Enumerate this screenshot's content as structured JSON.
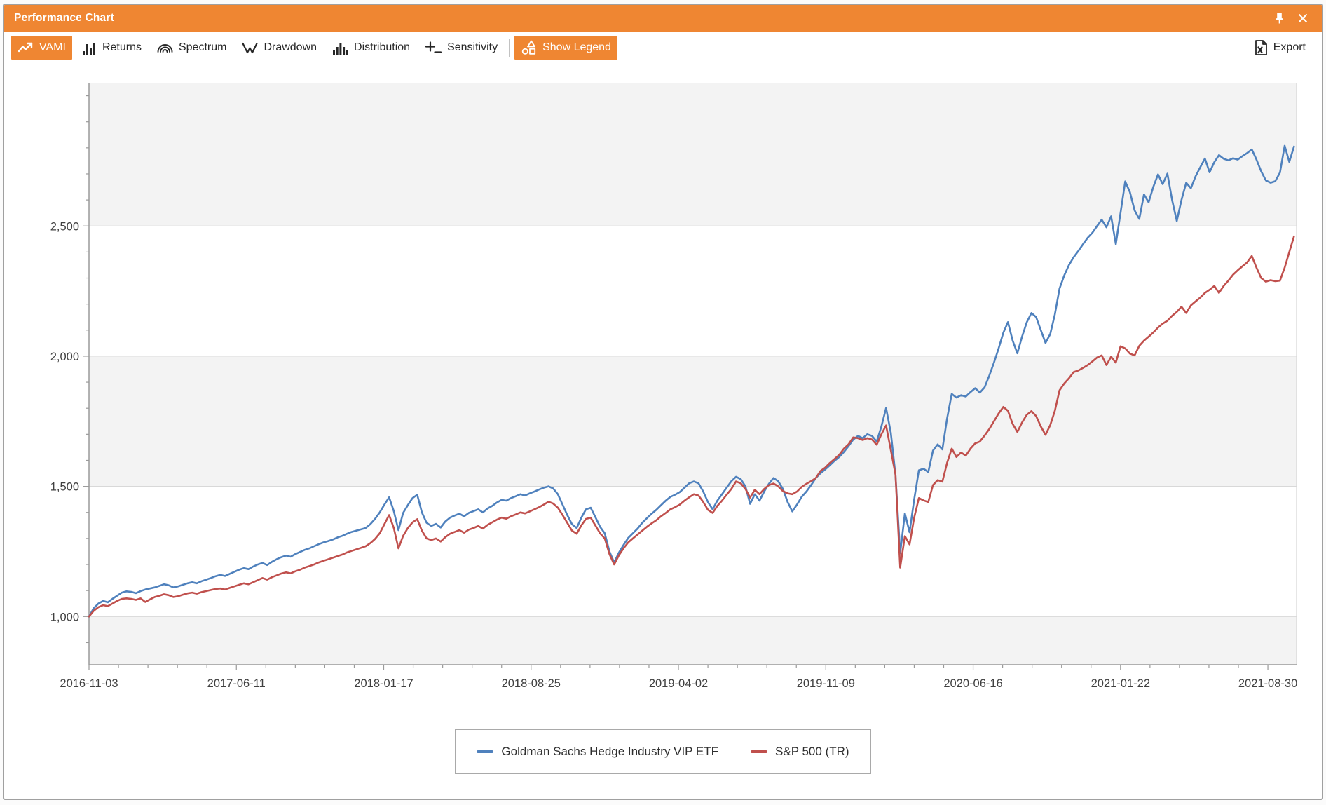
{
  "window": {
    "title": "Performance Chart"
  },
  "title_bar": {
    "icons": [
      "pin-icon",
      "close-icon"
    ]
  },
  "toolbar": {
    "buttons": [
      {
        "id": "vami",
        "label": "VAMI",
        "icon": "vami-icon",
        "selected": true,
        "after_separator": false
      },
      {
        "id": "returns",
        "label": "Returns",
        "icon": "returns-icon",
        "selected": false,
        "after_separator": false
      },
      {
        "id": "spectrum",
        "label": "Spectrum",
        "icon": "spectrum-icon",
        "selected": false,
        "after_separator": false
      },
      {
        "id": "drawdown",
        "label": "Drawdown",
        "icon": "drawdown-icon",
        "selected": false,
        "after_separator": false
      },
      {
        "id": "distribution",
        "label": "Distribution",
        "icon": "distribution-icon",
        "selected": false,
        "after_separator": false
      },
      {
        "id": "sensitivity",
        "label": "Sensitivity",
        "icon": "sensitivity-icon",
        "selected": false,
        "after_separator": false
      },
      {
        "id": "show-legend",
        "label": "Show Legend",
        "icon": "legend-icon",
        "selected": true,
        "after_separator": true
      }
    ],
    "export_label": "Export",
    "export_icon": "export-icon"
  },
  "colors": {
    "accent_orange": "#ef8632",
    "series_blue": "#4f81bd",
    "series_red": "#c0504d",
    "band_gray": "#f3f3f3",
    "gridline": "#d4d4d4",
    "axis": "#9a9a9a",
    "plot_right_edge": "#d8d8d8",
    "toolbar_text": "#262626",
    "axis_text": "#404040"
  },
  "chart_data": {
    "type": "line",
    "title": "",
    "xlabel": "",
    "ylabel": "",
    "grid": "horizontal-major-with-alternating-bands",
    "legend_position": "bottom-center",
    "start_value": 1000,
    "x_axis": {
      "tick_labels": [
        "2016-11-03",
        "2017-06-11",
        "2018-01-17",
        "2018-08-25",
        "2019-04-02",
        "2019-11-09",
        "2020-06-16",
        "2021-01-22",
        "2021-08-30"
      ],
      "tick_interval_weeks": 31.4286,
      "minor_ticks_per_major": 5,
      "total_weeks": 257
    },
    "y_axis": {
      "min": 815,
      "max": 3050,
      "minor_tick_step": 100,
      "band_step": 500,
      "major_ticks": [
        {
          "value": 1000,
          "label": "1,000"
        },
        {
          "value": 1500,
          "label": "1,500"
        },
        {
          "value": 2000,
          "label": "2,000"
        },
        {
          "value": 2500,
          "label": "2,500"
        }
      ]
    },
    "series": [
      {
        "name": "Goldman Sachs Hedge Industry VIP ETF",
        "color": "#4f81bd",
        "values": [
          1000,
          1032,
          1050,
          1060,
          1055,
          1068,
          1080,
          1092,
          1097,
          1095,
          1090,
          1098,
          1104,
          1108,
          1112,
          1118,
          1124,
          1120,
          1112,
          1116,
          1122,
          1128,
          1132,
          1128,
          1136,
          1142,
          1148,
          1155,
          1160,
          1156,
          1164,
          1172,
          1180,
          1186,
          1182,
          1192,
          1200,
          1206,
          1198,
          1210,
          1220,
          1228,
          1234,
          1230,
          1240,
          1248,
          1256,
          1262,
          1270,
          1278,
          1285,
          1290,
          1296,
          1304,
          1310,
          1318,
          1325,
          1330,
          1335,
          1340,
          1355,
          1375,
          1400,
          1430,
          1458,
          1405,
          1332,
          1398,
          1428,
          1455,
          1468,
          1400,
          1360,
          1348,
          1356,
          1342,
          1365,
          1380,
          1388,
          1395,
          1385,
          1398,
          1405,
          1412,
          1400,
          1415,
          1425,
          1438,
          1448,
          1445,
          1455,
          1462,
          1470,
          1465,
          1473,
          1480,
          1488,
          1495,
          1500,
          1492,
          1470,
          1430,
          1390,
          1355,
          1340,
          1380,
          1412,
          1418,
          1382,
          1345,
          1320,
          1250,
          1208,
          1245,
          1275,
          1302,
          1320,
          1338,
          1360,
          1378,
          1395,
          1410,
          1428,
          1445,
          1460,
          1468,
          1478,
          1495,
          1512,
          1519,
          1512,
          1480,
          1440,
          1412,
          1445,
          1470,
          1495,
          1520,
          1537,
          1528,
          1500,
          1433,
          1470,
          1445,
          1480,
          1510,
          1532,
          1520,
          1490,
          1440,
          1404,
          1430,
          1460,
          1480,
          1505,
          1532,
          1550,
          1565,
          1581,
          1598,
          1613,
          1632,
          1655,
          1680,
          1694,
          1685,
          1700,
          1694,
          1672,
          1730,
          1801,
          1707,
          1545,
          1243,
          1396,
          1324,
          1450,
          1562,
          1568,
          1555,
          1637,
          1661,
          1642,
          1760,
          1855,
          1841,
          1850,
          1845,
          1862,
          1877,
          1860,
          1880,
          1925,
          1975,
          2030,
          2090,
          2131,
          2060,
          2011,
          2075,
          2130,
          2166,
          2150,
          2100,
          2051,
          2085,
          2160,
          2260,
          2310,
          2350,
          2380,
          2404,
          2430,
          2455,
          2474,
          2500,
          2524,
          2495,
          2537,
          2430,
          2550,
          2671,
          2630,
          2560,
          2527,
          2621,
          2591,
          2650,
          2698,
          2661,
          2701,
          2600,
          2519,
          2600,
          2666,
          2645,
          2690,
          2725,
          2759,
          2706,
          2745,
          2772,
          2758,
          2752,
          2760,
          2755,
          2768,
          2780,
          2794,
          2755,
          2710,
          2675,
          2666,
          2672,
          2705,
          2808,
          2746,
          2805
        ]
      },
      {
        "name": "S&P 500 (TR)",
        "color": "#c0504d",
        "values": [
          1000,
          1022,
          1036,
          1044,
          1040,
          1050,
          1060,
          1068,
          1070,
          1068,
          1064,
          1070,
          1056,
          1066,
          1075,
          1080,
          1086,
          1082,
          1075,
          1078,
          1084,
          1089,
          1092,
          1088,
          1094,
          1098,
          1102,
          1106,
          1108,
          1104,
          1110,
          1116,
          1122,
          1128,
          1124,
          1132,
          1140,
          1148,
          1142,
          1151,
          1158,
          1165,
          1170,
          1166,
          1174,
          1180,
          1188,
          1194,
          1200,
          1208,
          1214,
          1220,
          1226,
          1232,
          1238,
          1246,
          1252,
          1258,
          1264,
          1270,
          1282,
          1298,
          1320,
          1355,
          1390,
          1340,
          1262,
          1310,
          1340,
          1362,
          1374,
          1330,
          1300,
          1294,
          1300,
          1288,
          1305,
          1318,
          1325,
          1332,
          1322,
          1334,
          1340,
          1348,
          1338,
          1352,
          1362,
          1372,
          1380,
          1376,
          1385,
          1392,
          1400,
          1396,
          1404,
          1412,
          1420,
          1430,
          1441,
          1434,
          1418,
          1390,
          1360,
          1330,
          1318,
          1350,
          1375,
          1380,
          1350,
          1320,
          1300,
          1240,
          1200,
          1235,
          1262,
          1285,
          1300,
          1315,
          1330,
          1345,
          1358,
          1370,
          1385,
          1398,
          1412,
          1420,
          1430,
          1445,
          1458,
          1470,
          1465,
          1440,
          1410,
          1398,
          1425,
          1445,
          1468,
          1490,
          1519,
          1512,
          1490,
          1457,
          1487,
          1470,
          1490,
          1505,
          1511,
          1500,
          1482,
          1473,
          1470,
          1480,
          1498,
          1510,
          1520,
          1532,
          1559,
          1572,
          1590,
          1605,
          1621,
          1645,
          1662,
          1688,
          1685,
          1678,
          1685,
          1680,
          1660,
          1700,
          1734,
          1640,
          1546,
          1188,
          1309,
          1277,
          1380,
          1455,
          1446,
          1440,
          1505,
          1524,
          1518,
          1590,
          1645,
          1613,
          1630,
          1618,
          1645,
          1665,
          1672,
          1695,
          1720,
          1750,
          1780,
          1805,
          1790,
          1740,
          1709,
          1745,
          1775,
          1789,
          1770,
          1730,
          1698,
          1735,
          1790,
          1869,
          1895,
          1915,
          1939,
          1945,
          1955,
          1966,
          1980,
          1995,
          2003,
          1966,
          1998,
          1975,
          2038,
          2030,
          2010,
          2003,
          2040,
          2060,
          2075,
          2091,
          2110,
          2125,
          2136,
          2155,
          2170,
          2190,
          2166,
          2195,
          2210,
          2225,
          2243,
          2255,
          2270,
          2243,
          2270,
          2290,
          2313,
          2330,
          2345,
          2360,
          2385,
          2340,
          2300,
          2286,
          2292,
          2288,
          2290,
          2340,
          2400,
          2460
        ]
      }
    ]
  },
  "legend": {
    "entries": [
      {
        "label": "Goldman Sachs Hedge Industry VIP ETF",
        "color": "#4f81bd"
      },
      {
        "label": "S&P 500 (TR)",
        "color": "#c0504d"
      }
    ]
  }
}
